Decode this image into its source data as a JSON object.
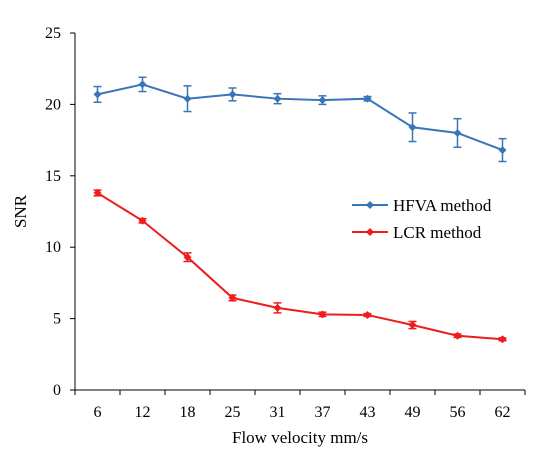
{
  "chart_data": {
    "type": "line",
    "title": "",
    "xlabel": "Flow velocity mm/s",
    "ylabel": "SNR",
    "categories": [
      "6",
      "12",
      "18",
      "25",
      "31",
      "37",
      "43",
      "49",
      "56",
      "62"
    ],
    "ylim": [
      0,
      25
    ],
    "yticks": [
      0,
      5,
      10,
      15,
      20,
      25
    ],
    "grid": false,
    "legend_position": "right",
    "series": [
      {
        "name": "HFVA method",
        "color": "#3a75b8",
        "marker": "diamond",
        "values": [
          20.7,
          21.4,
          20.4,
          20.7,
          20.4,
          20.3,
          20.4,
          18.4,
          18.0,
          16.8
        ],
        "errors": [
          0.55,
          0.5,
          0.9,
          0.45,
          0.35,
          0.3,
          0.15,
          1.0,
          1.0,
          0.8
        ]
      },
      {
        "name": "LCR method",
        "color": "#ee1c1c",
        "marker": "diamond",
        "values": [
          13.8,
          11.85,
          9.3,
          6.45,
          5.75,
          5.3,
          5.25,
          4.55,
          3.8,
          3.55
        ],
        "errors": [
          0.2,
          0.15,
          0.3,
          0.2,
          0.35,
          0.15,
          0.1,
          0.25,
          0.12,
          0.1
        ]
      }
    ]
  }
}
